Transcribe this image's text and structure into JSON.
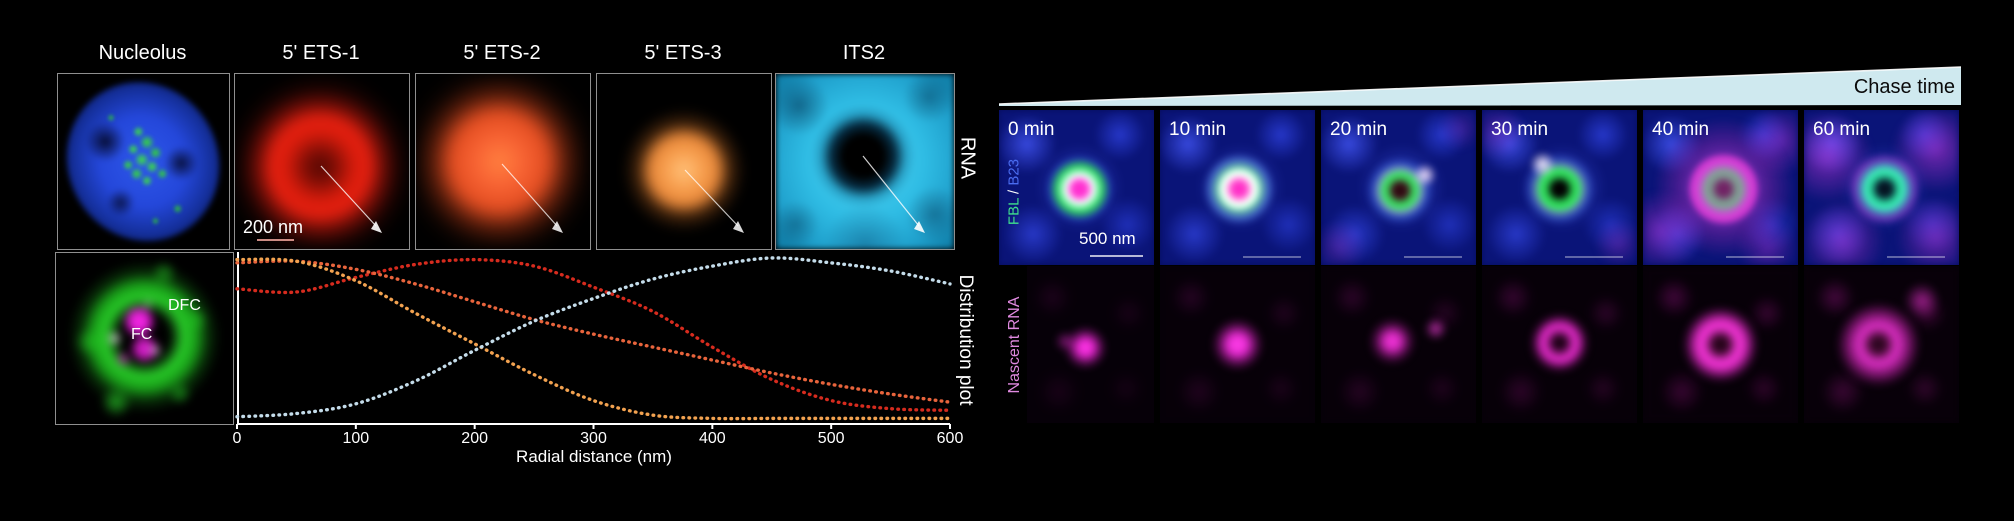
{
  "figure": {
    "left": {
      "panel_labels": [
        "Nucleolus",
        "5' ETS-1",
        "5' ETS-2",
        "5' ETS-3",
        "ITS2"
      ],
      "row_label_top": "RNA",
      "scale_bar": "200 nm",
      "dfc_label": "DFC",
      "fc_label": "FC"
    },
    "right": {
      "chase_time_label": "Chase time",
      "time_labels": [
        "0 min",
        "10 min",
        "20 min",
        "30 min",
        "40 min",
        "60 min"
      ],
      "probe_label_parts": {
        "fbl": "FBL",
        "sep": " / ",
        "b23": "B23"
      },
      "scale_bar": "500 nm",
      "bottom_row_label": "Nascent RNA"
    },
    "colors": {
      "fbl_green": "#3fe08c",
      "b23_blue": "#4a6cf0",
      "nascent_magenta": "#e08ae0",
      "wedge_blue": "#cfe9ef"
    }
  },
  "chart_data": {
    "type": "line",
    "style": "dotted",
    "x": [
      0,
      50,
      100,
      150,
      200,
      250,
      300,
      350,
      400,
      450,
      500,
      550,
      600
    ],
    "series": [
      {
        "name": "5' ETS-1",
        "color": "#d62b1e",
        "values": [
          0.81,
          0.79,
          0.88,
          0.96,
          0.99,
          0.95,
          0.82,
          0.67,
          0.45,
          0.25,
          0.12,
          0.07,
          0.06
        ]
      },
      {
        "name": "5' ETS-2",
        "color": "#e8643c",
        "values": [
          0.97,
          0.98,
          0.93,
          0.84,
          0.73,
          0.62,
          0.53,
          0.45,
          0.37,
          0.29,
          0.22,
          0.16,
          0.11
        ]
      },
      {
        "name": "5' ETS-3",
        "color": "#f2a250",
        "values": [
          0.99,
          0.98,
          0.86,
          0.66,
          0.47,
          0.28,
          0.12,
          0.03,
          0.01,
          0.01,
          0.01,
          0.01,
          0.01
        ]
      },
      {
        "name": "ITS2",
        "color": "#c4dcea",
        "values": [
          0.02,
          0.04,
          0.1,
          0.24,
          0.43,
          0.61,
          0.75,
          0.87,
          0.95,
          1.0,
          0.97,
          0.92,
          0.84
        ]
      }
    ],
    "xlabel": "Radial distance (nm)",
    "ylabel": "Distribution plot",
    "xticks": [
      0,
      100,
      200,
      300,
      400,
      500,
      600
    ],
    "xlim": [
      0,
      600
    ],
    "ylim": [
      0,
      1
    ],
    "grid": false,
    "legend": "none"
  }
}
